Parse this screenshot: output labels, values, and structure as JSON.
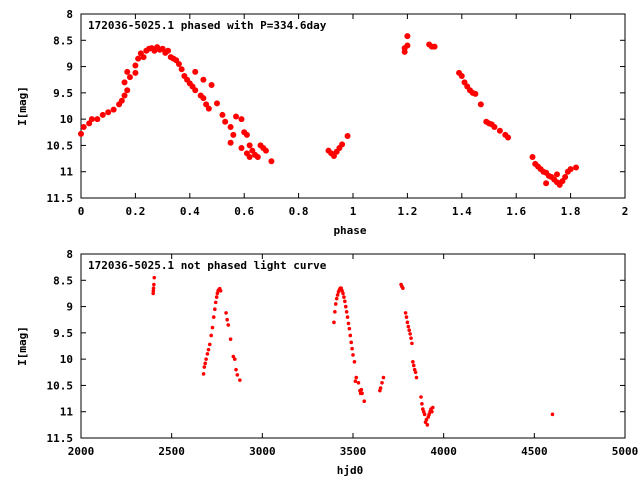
{
  "chart_data": [
    {
      "type": "scatter",
      "title": "172036-5025.1 phased with P=334.6day",
      "xlabel": "phase",
      "ylabel": "I[mag]",
      "xlim": [
        0,
        2
      ],
      "ylim": [
        8,
        11.5
      ],
      "y_inverted": true,
      "x_ticks": [
        0,
        0.2,
        0.4,
        0.6,
        0.8,
        1,
        1.2,
        1.4,
        1.6,
        1.8,
        2
      ],
      "x_tick_labels": [
        "0",
        "0.2",
        "0.4",
        "0.6",
        "0.8",
        "1",
        "1.2",
        "1.4",
        "1.6",
        "1.8",
        "2"
      ],
      "y_ticks": [
        8,
        8.5,
        9,
        9.5,
        10,
        10.5,
        11,
        11.5
      ],
      "y_tick_labels": [
        "8",
        "8.5",
        "9",
        "9.5",
        "10",
        "10.5",
        "11",
        "11.5"
      ],
      "grid": false,
      "color": "#ff0000",
      "marker_size": 3.0,
      "points": [
        [
          0.0,
          10.28
        ],
        [
          0.01,
          10.15
        ],
        [
          0.03,
          10.08
        ],
        [
          0.04,
          10.0
        ],
        [
          0.06,
          10.0
        ],
        [
          0.08,
          9.92
        ],
        [
          0.1,
          9.87
        ],
        [
          0.12,
          9.82
        ],
        [
          0.14,
          9.72
        ],
        [
          0.15,
          9.65
        ],
        [
          0.16,
          9.55
        ],
        [
          0.17,
          9.45
        ],
        [
          0.16,
          9.3
        ],
        [
          0.18,
          9.2
        ],
        [
          0.17,
          9.1
        ],
        [
          0.2,
          9.12
        ],
        [
          0.2,
          8.98
        ],
        [
          0.21,
          8.85
        ],
        [
          0.22,
          8.75
        ],
        [
          0.23,
          8.82
        ],
        [
          0.24,
          8.7
        ],
        [
          0.25,
          8.66
        ],
        [
          0.26,
          8.65
        ],
        [
          0.27,
          8.7
        ],
        [
          0.28,
          8.63
        ],
        [
          0.29,
          8.68
        ],
        [
          0.3,
          8.66
        ],
        [
          0.31,
          8.74
        ],
        [
          0.32,
          8.7
        ],
        [
          0.33,
          8.82
        ],
        [
          0.34,
          8.85
        ],
        [
          0.35,
          8.88
        ],
        [
          0.36,
          8.95
        ],
        [
          0.37,
          9.05
        ],
        [
          0.38,
          9.18
        ],
        [
          0.39,
          9.25
        ],
        [
          0.4,
          9.32
        ],
        [
          0.41,
          9.38
        ],
        [
          0.42,
          9.45
        ],
        [
          0.44,
          9.55
        ],
        [
          0.45,
          9.6
        ],
        [
          0.46,
          9.72
        ],
        [
          0.47,
          9.8
        ],
        [
          0.42,
          9.1
        ],
        [
          0.45,
          9.25
        ],
        [
          0.48,
          9.35
        ],
        [
          0.5,
          9.7
        ],
        [
          0.52,
          9.92
        ],
        [
          0.53,
          10.05
        ],
        [
          0.55,
          10.15
        ],
        [
          0.56,
          10.3
        ],
        [
          0.57,
          9.95
        ],
        [
          0.59,
          10.0
        ],
        [
          0.6,
          10.25
        ],
        [
          0.61,
          10.3
        ],
        [
          0.62,
          10.5
        ],
        [
          0.63,
          10.6
        ],
        [
          0.64,
          10.68
        ],
        [
          0.66,
          10.5
        ],
        [
          0.67,
          10.55
        ],
        [
          0.68,
          10.6
        ],
        [
          0.55,
          10.45
        ],
        [
          0.59,
          10.55
        ],
        [
          0.61,
          10.65
        ],
        [
          0.62,
          10.72
        ],
        [
          0.65,
          10.72
        ],
        [
          0.7,
          10.8
        ],
        [
          0.91,
          10.6
        ],
        [
          0.92,
          10.65
        ],
        [
          0.93,
          10.7
        ],
        [
          0.94,
          10.62
        ],
        [
          0.95,
          10.55
        ],
        [
          0.96,
          10.48
        ],
        [
          0.98,
          10.32
        ],
        [
          1.19,
          8.72
        ],
        [
          1.19,
          8.65
        ],
        [
          1.2,
          8.6
        ],
        [
          1.2,
          8.42
        ],
        [
          1.28,
          8.58
        ],
        [
          1.29,
          8.62
        ],
        [
          1.3,
          8.62
        ],
        [
          1.39,
          9.12
        ],
        [
          1.4,
          9.18
        ],
        [
          1.41,
          9.3
        ],
        [
          1.42,
          9.38
        ],
        [
          1.43,
          9.45
        ],
        [
          1.44,
          9.5
        ],
        [
          1.45,
          9.52
        ],
        [
          1.47,
          9.72
        ],
        [
          1.49,
          10.05
        ],
        [
          1.5,
          10.08
        ],
        [
          1.51,
          10.1
        ],
        [
          1.52,
          10.15
        ],
        [
          1.54,
          10.22
        ],
        [
          1.56,
          10.3
        ],
        [
          1.57,
          10.35
        ],
        [
          1.66,
          10.72
        ],
        [
          1.67,
          10.85
        ],
        [
          1.68,
          10.9
        ],
        [
          1.69,
          10.95
        ],
        [
          1.7,
          11.0
        ],
        [
          1.71,
          11.02
        ],
        [
          1.72,
          11.08
        ],
        [
          1.73,
          11.1
        ],
        [
          1.74,
          11.15
        ],
        [
          1.75,
          11.05
        ],
        [
          1.76,
          11.25
        ],
        [
          1.77,
          11.18
        ],
        [
          1.78,
          11.1
        ],
        [
          1.79,
          11.0
        ],
        [
          1.8,
          10.95
        ],
        [
          1.82,
          10.92
        ],
        [
          1.71,
          11.22
        ],
        [
          1.75,
          11.2
        ]
      ]
    },
    {
      "type": "scatter",
      "title": "172036-5025.1 not phased light curve",
      "xlabel": "hjd0",
      "ylabel": "I[mag]",
      "xlim": [
        2000,
        5000
      ],
      "ylim": [
        8,
        11.5
      ],
      "y_inverted": true,
      "x_ticks": [
        2000,
        2500,
        3000,
        3500,
        4000,
        4500,
        5000
      ],
      "x_tick_labels": [
        "2000",
        "2500",
        "3000",
        "3500",
        "4000",
        "4500",
        "5000"
      ],
      "y_ticks": [
        8,
        8.5,
        9,
        9.5,
        10,
        10.5,
        11,
        11.5
      ],
      "y_tick_labels": [
        "8",
        "8.5",
        "9",
        "9.5",
        "10",
        "10.5",
        "11",
        "11.5"
      ],
      "grid": false,
      "color": "#ff0000",
      "marker_size": 1.8,
      "points": [
        [
          2398,
          8.75
        ],
        [
          2399,
          8.7
        ],
        [
          2400,
          8.65
        ],
        [
          2402,
          8.58
        ],
        [
          2404,
          8.45
        ],
        [
          2676,
          10.28
        ],
        [
          2680,
          10.15
        ],
        [
          2685,
          10.08
        ],
        [
          2690,
          10.0
        ],
        [
          2697,
          9.9
        ],
        [
          2703,
          9.82
        ],
        [
          2710,
          9.72
        ],
        [
          2718,
          9.55
        ],
        [
          2725,
          9.4
        ],
        [
          2732,
          9.2
        ],
        [
          2738,
          9.05
        ],
        [
          2743,
          8.92
        ],
        [
          2748,
          8.82
        ],
        [
          2752,
          8.75
        ],
        [
          2756,
          8.7
        ],
        [
          2760,
          8.68
        ],
        [
          2765,
          8.66
        ],
        [
          2770,
          8.7
        ],
        [
          2800,
          9.12
        ],
        [
          2806,
          9.25
        ],
        [
          2812,
          9.35
        ],
        [
          2825,
          9.62
        ],
        [
          2840,
          9.95
        ],
        [
          2848,
          10.0
        ],
        [
          2855,
          10.2
        ],
        [
          2862,
          10.3
        ],
        [
          2876,
          10.4
        ],
        [
          3395,
          9.3
        ],
        [
          3400,
          9.1
        ],
        [
          3405,
          8.95
        ],
        [
          3410,
          8.85
        ],
        [
          3415,
          8.78
        ],
        [
          3420,
          8.72
        ],
        [
          3425,
          8.68
        ],
        [
          3430,
          8.65
        ],
        [
          3435,
          8.65
        ],
        [
          3440,
          8.7
        ],
        [
          3445,
          8.75
        ],
        [
          3450,
          8.82
        ],
        [
          3455,
          8.9
        ],
        [
          3460,
          9.0
        ],
        [
          3465,
          9.1
        ],
        [
          3470,
          9.2
        ],
        [
          3475,
          9.32
        ],
        [
          3480,
          9.42
        ],
        [
          3485,
          9.55
        ],
        [
          3490,
          9.68
        ],
        [
          3495,
          9.8
        ],
        [
          3500,
          9.92
        ],
        [
          3508,
          10.05
        ],
        [
          3513,
          10.42
        ],
        [
          3518,
          10.35
        ],
        [
          3530,
          10.45
        ],
        [
          3538,
          10.6
        ],
        [
          3542,
          10.65
        ],
        [
          3546,
          10.58
        ],
        [
          3550,
          10.65
        ],
        [
          3562,
          10.8
        ],
        [
          3648,
          10.6
        ],
        [
          3652,
          10.55
        ],
        [
          3660,
          10.45
        ],
        [
          3668,
          10.35
        ],
        [
          3765,
          8.58
        ],
        [
          3770,
          8.62
        ],
        [
          3775,
          8.65
        ],
        [
          3790,
          9.12
        ],
        [
          3795,
          9.2
        ],
        [
          3800,
          9.3
        ],
        [
          3805,
          9.38
        ],
        [
          3810,
          9.45
        ],
        [
          3815,
          9.52
        ],
        [
          3820,
          9.6
        ],
        [
          3825,
          9.7
        ],
        [
          3830,
          10.05
        ],
        [
          3835,
          10.12
        ],
        [
          3840,
          10.2
        ],
        [
          3845,
          10.25
        ],
        [
          3850,
          10.35
        ],
        [
          3875,
          10.72
        ],
        [
          3880,
          10.85
        ],
        [
          3885,
          10.95
        ],
        [
          3890,
          11.0
        ],
        [
          3895,
          11.05
        ],
        [
          3900,
          11.2
        ],
        [
          3905,
          11.15
        ],
        [
          3910,
          11.25
        ],
        [
          3915,
          11.1
        ],
        [
          3920,
          11.05
        ],
        [
          3925,
          11.0
        ],
        [
          3930,
          10.95
        ],
        [
          3935,
          11.0
        ],
        [
          3940,
          10.92
        ],
        [
          4600,
          11.05
        ]
      ]
    }
  ]
}
